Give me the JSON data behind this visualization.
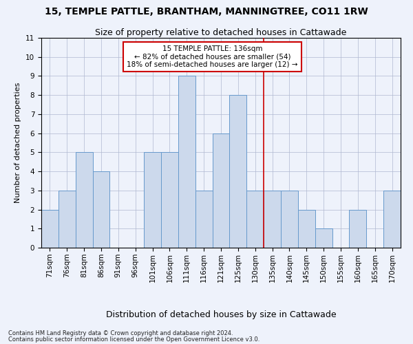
{
  "title": "15, TEMPLE PATTLE, BRANTHAM, MANNINGTREE, CO11 1RW",
  "subtitle": "Size of property relative to detached houses in Cattawade",
  "xlabel": "Distribution of detached houses by size in Cattawade",
  "ylabel": "Number of detached properties",
  "categories": [
    "71sqm",
    "76sqm",
    "81sqm",
    "86sqm",
    "91sqm",
    "96sqm",
    "101sqm",
    "106sqm",
    "111sqm",
    "116sqm",
    "121sqm",
    "125sqm",
    "130sqm",
    "135sqm",
    "140sqm",
    "145sqm",
    "150sqm",
    "155sqm",
    "160sqm",
    "165sqm",
    "170sqm"
  ],
  "values": [
    2,
    3,
    5,
    4,
    0,
    0,
    5,
    5,
    9,
    3,
    6,
    8,
    3,
    3,
    3,
    2,
    1,
    0,
    2,
    0,
    3
  ],
  "bar_color": "#ccd9ec",
  "bar_edge_color": "#6699cc",
  "vline_x": 12.5,
  "vline_color": "#cc0000",
  "ylim": [
    0,
    11
  ],
  "yticks": [
    0,
    1,
    2,
    3,
    4,
    5,
    6,
    7,
    8,
    9,
    10,
    11
  ],
  "annotation_title": "15 TEMPLE PATTLE: 136sqm",
  "annotation_line1": "← 82% of detached houses are smaller (54)",
  "annotation_line2": "18% of semi-detached houses are larger (12) →",
  "annotation_box_color": "#ffffff",
  "annotation_border_color": "#cc0000",
  "title_fontsize": 10,
  "subtitle_fontsize": 9,
  "xlabel_fontsize": 9,
  "ylabel_fontsize": 8,
  "tick_fontsize": 7.5,
  "annotation_fontsize": 7.5,
  "footer1": "Contains HM Land Registry data © Crown copyright and database right 2024.",
  "footer2": "Contains public sector information licensed under the Open Government Licence v3.0.",
  "background_color": "#eef2fb"
}
